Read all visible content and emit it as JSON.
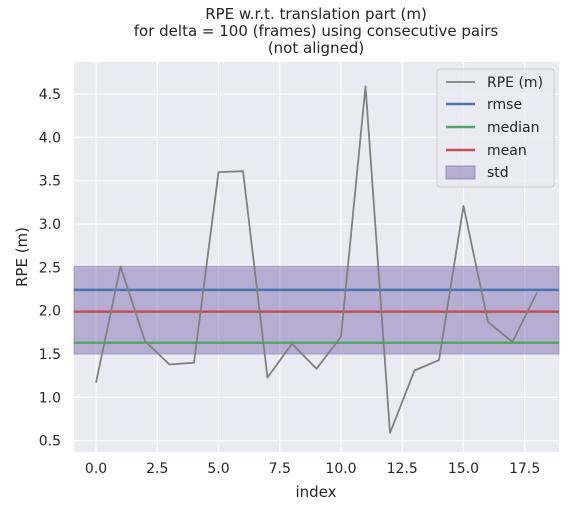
{
  "chart_data": {
    "type": "line",
    "title": [
      "RPE w.r.t. translation part (m)",
      "for delta = 100 (frames) using consecutive pairs",
      "(not aligned)"
    ],
    "xlabel": "index",
    "ylabel": "RPE (m)",
    "xlim": [
      -0.9,
      18.9
    ],
    "ylim": [
      0.37,
      4.87
    ],
    "x_ticks": [
      0,
      2.5,
      5,
      7.5,
      10,
      12.5,
      15,
      17.5
    ],
    "x_tick_labels": [
      "0.0",
      "2.5",
      "5.0",
      "7.5",
      "10.0",
      "12.5",
      "15.0",
      "17.5"
    ],
    "y_ticks": [
      0.5,
      1.0,
      1.5,
      2.0,
      2.5,
      3.0,
      3.5,
      4.0,
      4.5
    ],
    "y_tick_labels": [
      "0.5",
      "1.0",
      "1.5",
      "2.0",
      "2.5",
      "3.0",
      "3.5",
      "4.0",
      "4.5"
    ],
    "grid": true,
    "legend_position": "top-right",
    "series": [
      {
        "name": "RPE (m)",
        "color": "#808080",
        "x": [
          0,
          1,
          2,
          3,
          4,
          5,
          6,
          7,
          8,
          9,
          10,
          11,
          12,
          13,
          14,
          15,
          16,
          17,
          18
        ],
        "values": [
          1.17,
          2.51,
          1.65,
          1.38,
          1.4,
          3.6,
          3.61,
          1.23,
          1.62,
          1.33,
          1.7,
          4.59,
          0.59,
          1.31,
          1.43,
          3.21,
          1.87,
          1.64,
          2.21
        ]
      }
    ],
    "stats": [
      {
        "name": "rmse",
        "value": 2.24,
        "color": "#4c72b0"
      },
      {
        "name": "median",
        "value": 1.63,
        "color": "#55a868"
      },
      {
        "name": "mean",
        "value": 1.99,
        "color": "#c44e52"
      }
    ],
    "std": {
      "name": "std",
      "lower": 1.5,
      "upper": 2.51,
      "color": "#8172b2"
    }
  }
}
